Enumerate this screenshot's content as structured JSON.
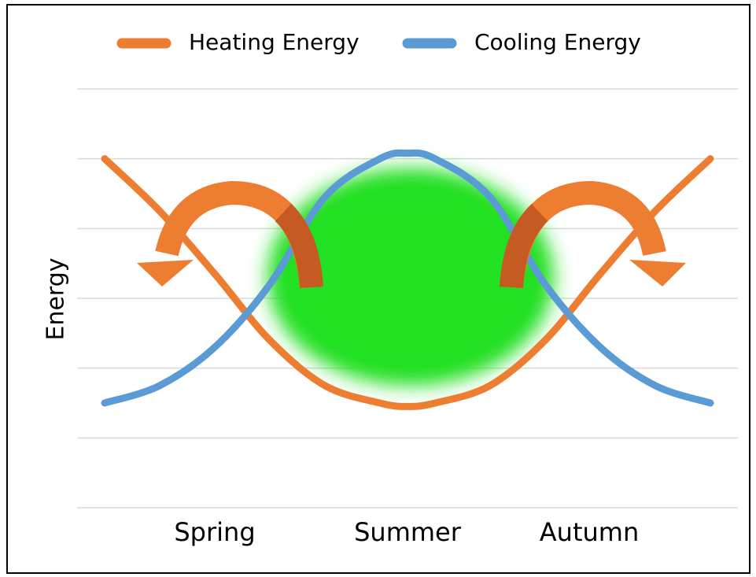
{
  "chart_data": {
    "type": "line",
    "y_label": "Energy",
    "x": [
      0.5,
      1.5,
      2.5,
      3.5,
      4.5,
      5.5,
      6,
      6.5,
      7.5,
      8.5,
      9.5,
      10.5,
      11.5
    ],
    "xlim": [
      0,
      12
    ],
    "xticks": [
      {
        "value": 2.5,
        "label": "Spring"
      },
      {
        "value": 6,
        "label": "Summer"
      },
      {
        "value": 9.3,
        "label": "Autumn"
      }
    ],
    "ylim": [
      0,
      6
    ],
    "yticks": [
      0,
      1,
      2,
      3,
      4,
      5,
      6
    ],
    "grid": true,
    "legend": "top",
    "series": [
      {
        "name": "Heating Energy",
        "color": "#ed7d31",
        "values": [
          5,
          4.25,
          3.35,
          2.4,
          1.75,
          1.5,
          1.45,
          1.5,
          1.75,
          2.4,
          3.35,
          4.25,
          5
        ]
      },
      {
        "name": "Cooling Energy",
        "color": "#5b9bd5",
        "values": [
          1.5,
          1.75,
          2.3,
          3.2,
          4.45,
          5,
          5.08,
          5,
          4.45,
          3.2,
          2.3,
          1.75,
          1.5
        ]
      }
    ]
  }
}
